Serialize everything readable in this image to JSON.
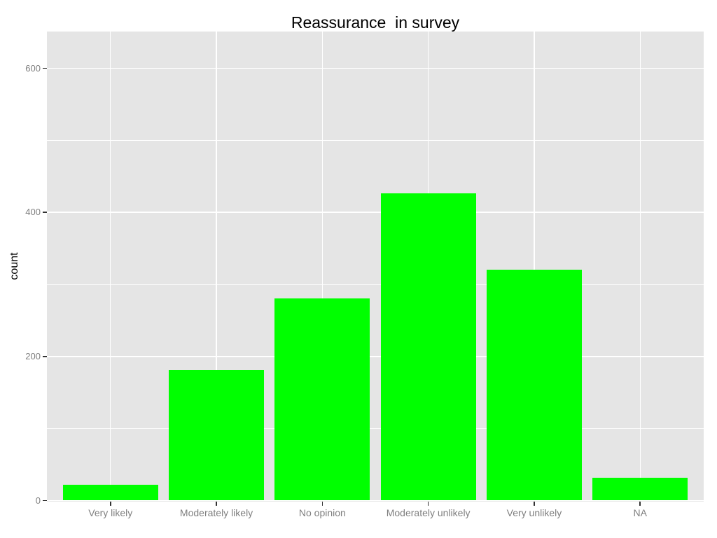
{
  "title": "Reassurance  in survey",
  "y_axis_title": "count",
  "chart_data": {
    "type": "bar",
    "title": "Reassurance  in survey",
    "xlabel": "",
    "ylabel": "count",
    "categories": [
      "Very likely",
      "Moderately likely",
      "No opinion",
      "Moderately unlikely",
      "Very unlikely",
      "NA"
    ],
    "values": [
      22,
      181,
      281,
      426,
      320,
      32
    ],
    "ylim": [
      0,
      651
    ],
    "yticks": [
      0,
      200,
      400,
      600
    ],
    "yticks_minor": [
      100,
      300,
      500
    ],
    "grid": true,
    "legend_position": "none",
    "bar_color": "#00FF00",
    "panel_background": "#E5E5E5",
    "gridline_color": "#FFFFFF",
    "tick_label_color": "#7F7F7F",
    "axis_title_color": "#000000",
    "tick_mark_color": "#333333"
  }
}
